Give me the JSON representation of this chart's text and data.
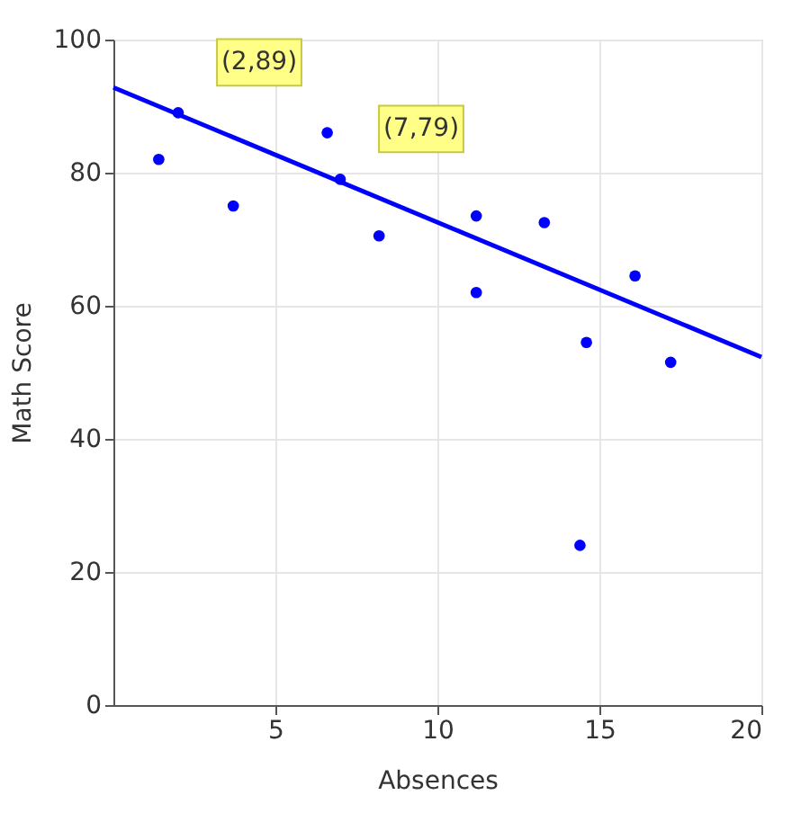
{
  "chart_data": {
    "type": "scatter",
    "xlabel": "Absences",
    "ylabel": "Math Score",
    "xlim": [
      0,
      20
    ],
    "xticks": [
      5,
      10,
      15,
      20
    ],
    "ylim": [
      0,
      100
    ],
    "yticks": [
      0,
      20,
      40,
      60,
      80,
      100
    ],
    "grid": true,
    "marker": "circle",
    "line_style": "solid",
    "series": [
      {
        "color": "#0000ff",
        "x": [
          1.4,
          2,
          3.7,
          6.6,
          7,
          8.2,
          11.2,
          11.2,
          13.3,
          14.4,
          14.6,
          16.1,
          17.2
        ],
        "values": [
          82,
          89,
          75,
          86,
          79,
          70.5,
          73.5,
          62,
          72.5,
          24,
          54.5,
          64.5,
          51.5
        ]
      },
      {
        "type": "line",
        "color": "#0000ff",
        "marker": "none",
        "x": [
          0,
          20
        ],
        "values": [
          92.8,
          52.3
        ]
      }
    ],
    "annotations": [
      {
        "text": "(2,89)",
        "x": 2,
        "y": 89
      },
      {
        "text": "(7,79)",
        "x": 7,
        "y": 79
      }
    ]
  }
}
